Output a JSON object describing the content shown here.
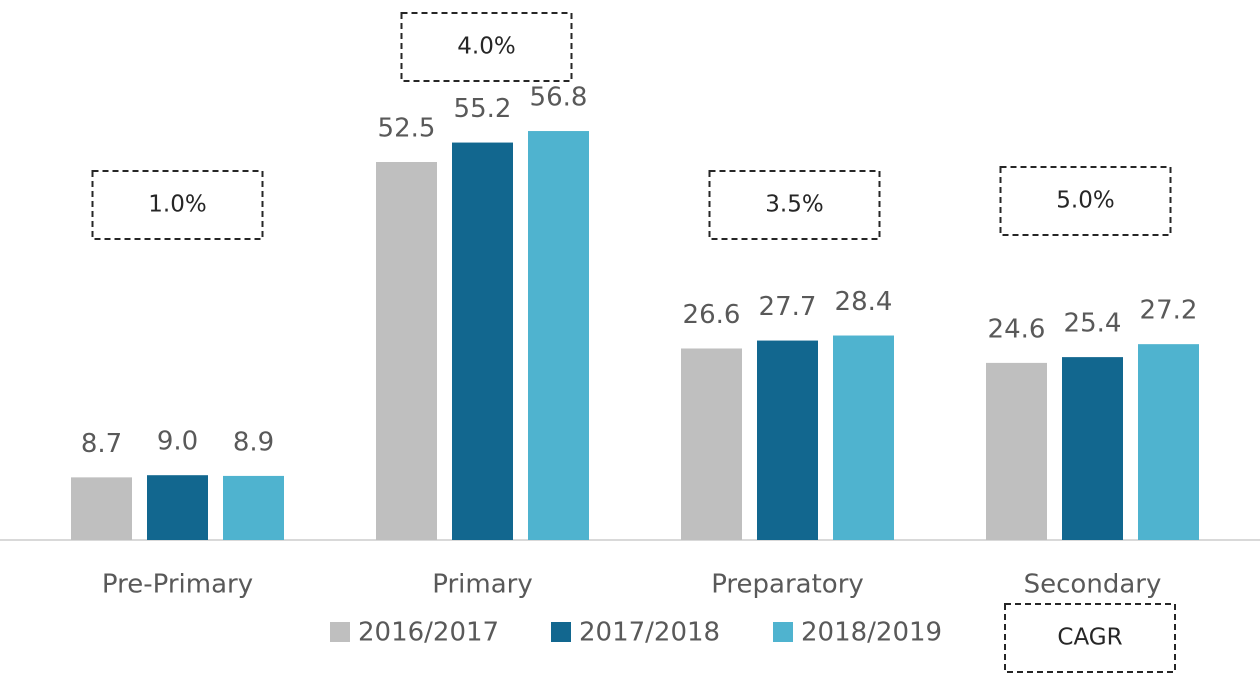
{
  "chart_data": {
    "type": "bar",
    "categories": [
      "Pre-Primary",
      "Primary",
      "Preparatory",
      "Secondary"
    ],
    "series": [
      {
        "name": "2016/2017",
        "color": "#bfbfbf",
        "values": [
          8.7,
          52.5,
          26.6,
          24.6
        ],
        "value_labels": [
          "8.7",
          "52.5",
          "26.6",
          "24.6"
        ]
      },
      {
        "name": "2017/2018",
        "color": "#12678f",
        "values": [
          9.0,
          55.2,
          27.7,
          25.4
        ],
        "value_labels": [
          "9.0",
          "55.2",
          "27.7",
          "25.4"
        ]
      },
      {
        "name": "2018/2019",
        "color": "#4fb3cf",
        "values": [
          8.9,
          56.8,
          28.4,
          27.2
        ],
        "value_labels": [
          "8.9",
          "56.8",
          "28.4",
          "27.2"
        ]
      }
    ],
    "cagr": {
      "label": "CAGR",
      "values": [
        1.0,
        4.0,
        3.5,
        5.0
      ],
      "value_labels": [
        "1.0%",
        "4.0%",
        "3.5%",
        "5.0%"
      ]
    },
    "ylim": [
      0,
      60
    ],
    "legend": "bottom"
  }
}
